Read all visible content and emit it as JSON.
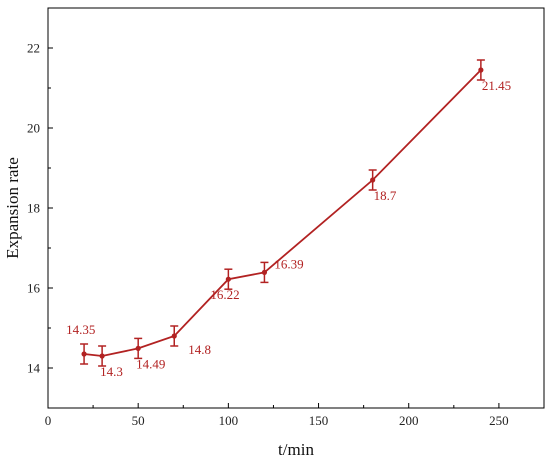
{
  "chart_data": {
    "type": "line",
    "title": "",
    "xlabel": "t/min",
    "ylabel": "Expansion rate",
    "xlim": [
      0,
      275
    ],
    "ylim": [
      13,
      23
    ],
    "xticks": [
      0,
      50,
      100,
      150,
      200,
      250
    ],
    "yticks": [
      14,
      16,
      18,
      20,
      22
    ],
    "grid": false,
    "color": "#b22222",
    "series": [
      {
        "x": [
          20,
          30,
          50,
          70,
          100,
          120,
          180,
          240
        ],
        "y": [
          14.35,
          14.3,
          14.49,
          14.8,
          16.22,
          16.39,
          18.7,
          21.45
        ],
        "error": [
          0.25,
          0.25,
          0.25,
          0.25,
          0.25,
          0.25,
          0.25,
          0.25
        ],
        "labels": [
          "14.35",
          "14.3",
          "14.49",
          "14.8",
          "16.22",
          "16.39",
          "18.7",
          "21.45"
        ]
      }
    ]
  }
}
